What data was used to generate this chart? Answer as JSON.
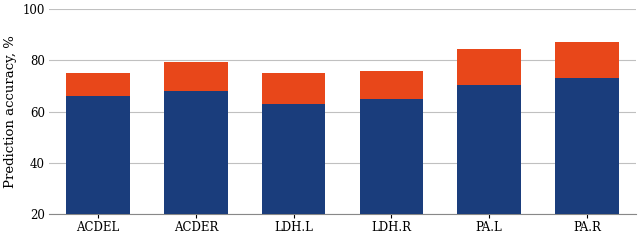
{
  "categories": [
    "ACDEL",
    "ACDER",
    "LDH.L",
    "LDH.R",
    "PA.L",
    "PA.R"
  ],
  "blue_values": [
    66.0,
    68.0,
    63.0,
    65.0,
    70.5,
    73.0
  ],
  "red_values": [
    9.0,
    11.5,
    12.0,
    11.0,
    14.0,
    14.0
  ],
  "blue_color": "#1a3d7c",
  "red_color": "#e8471a",
  "ylabel": "Prediction accuracy, %",
  "ylim": [
    20,
    100
  ],
  "yticks": [
    20,
    40,
    60,
    80,
    100
  ],
  "bar_width": 0.65,
  "background_color": "#ffffff",
  "grid_color": "#c0c0c0",
  "tick_fontsize": 8.5,
  "ylabel_fontsize": 9.5,
  "bottom_base": 20,
  "xlim_left": -0.5,
  "xlim_right": 5.5
}
